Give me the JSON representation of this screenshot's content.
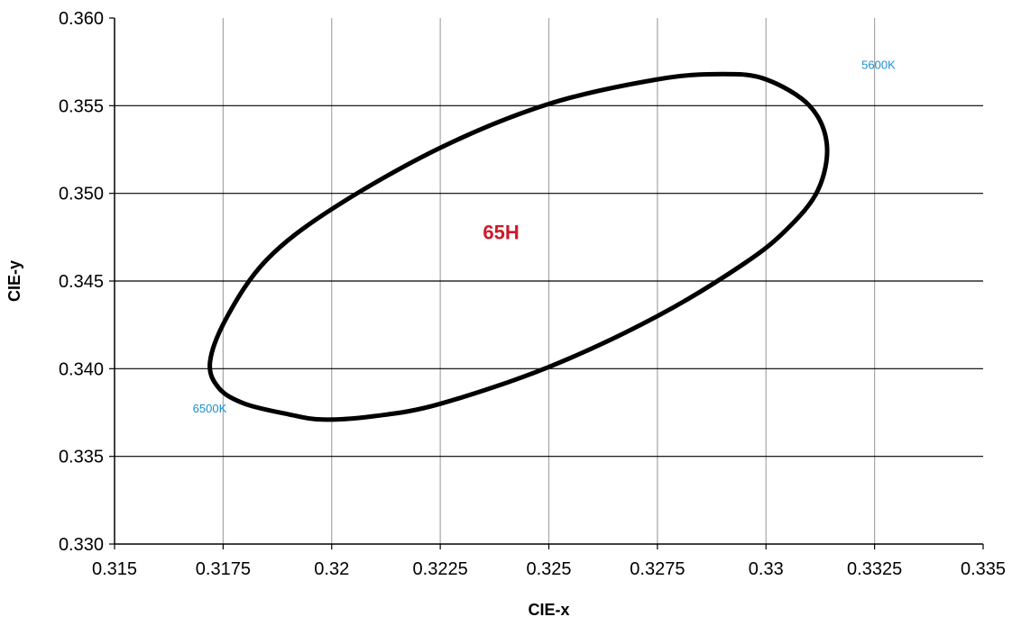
{
  "chart_data": {
    "type": "scatter",
    "xlabel": "CIE-x",
    "ylabel": "CIE-y",
    "xlim": [
      0.315,
      0.335
    ],
    "ylim": [
      0.33,
      0.36
    ],
    "x_ticks": [
      "0.315",
      "0.3175",
      "0.32",
      "0.3225",
      "0.325",
      "0.3275",
      "0.33",
      "0.3325",
      "0.335"
    ],
    "y_ticks": [
      "0.330",
      "0.335",
      "0.340",
      "0.345",
      "0.350",
      "0.355",
      "0.360"
    ],
    "grid": true,
    "ellipse": {
      "name": "65H",
      "center": [
        0.3241,
        0.347
      ],
      "color": "#000000",
      "points": [
        [
          0.3172,
          0.3404
        ],
        [
          0.3174,
          0.3389
        ],
        [
          0.318,
          0.338
        ],
        [
          0.319,
          0.3374
        ],
        [
          0.3198,
          0.3371
        ],
        [
          0.321,
          0.3373
        ],
        [
          0.3225,
          0.338
        ],
        [
          0.325,
          0.3401
        ],
        [
          0.3275,
          0.343
        ],
        [
          0.3295,
          0.346
        ],
        [
          0.3305,
          0.348
        ],
        [
          0.3312,
          0.3502
        ],
        [
          0.3314,
          0.3528
        ],
        [
          0.331,
          0.355
        ],
        [
          0.33,
          0.3565
        ],
        [
          0.329,
          0.3568
        ],
        [
          0.3275,
          0.3565
        ],
        [
          0.325,
          0.3551
        ],
        [
          0.3225,
          0.3526
        ],
        [
          0.32,
          0.3491
        ],
        [
          0.3185,
          0.3462
        ],
        [
          0.3176,
          0.343
        ],
        [
          0.3172,
          0.3404
        ]
      ]
    },
    "annotations": [
      {
        "text": "65H",
        "x": 0.3239,
        "y": 0.3474,
        "color": "#cc1a2a"
      },
      {
        "text": "5600K",
        "x": 0.3322,
        "y": 0.3571,
        "color": "#1a8fd1"
      },
      {
        "text": "6500K",
        "x": 0.3168,
        "y": 0.3375,
        "color": "#1a8fd1"
      }
    ]
  }
}
